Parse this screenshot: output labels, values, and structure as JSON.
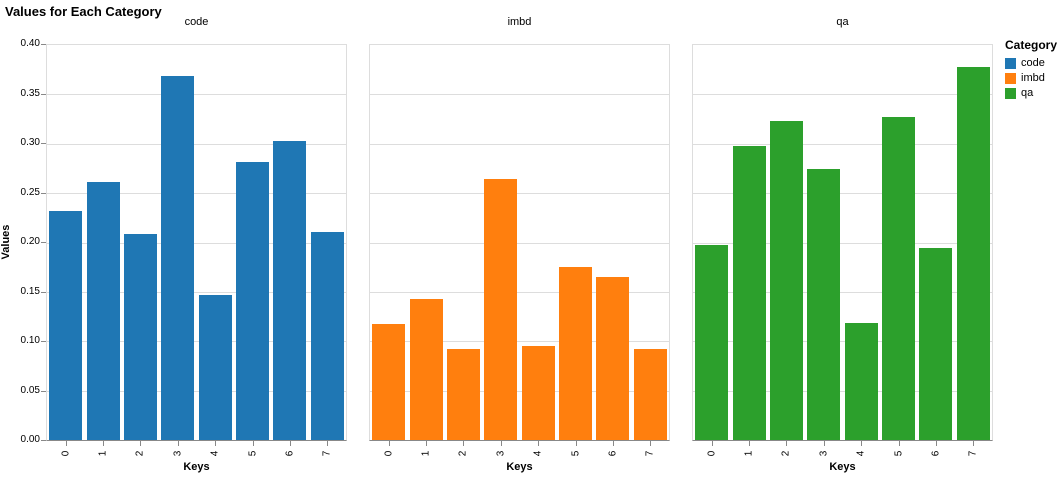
{
  "title": "Values for Each Category",
  "axes": {
    "x_label": "Keys",
    "y_label": "Values",
    "y_ticks": [
      "0.00",
      "0.05",
      "0.10",
      "0.15",
      "0.20",
      "0.25",
      "0.30",
      "0.35",
      "0.40"
    ],
    "x_ticks": [
      "0",
      "1",
      "2",
      "3",
      "4",
      "5",
      "6",
      "7"
    ]
  },
  "legend": {
    "title": "Category",
    "items": [
      {
        "label": "code",
        "color": "#1f77b4"
      },
      {
        "label": "imbd",
        "color": "#ff7f0e"
      },
      {
        "label": "qa",
        "color": "#2ca02c"
      }
    ]
  },
  "chart_data": {
    "type": "bar",
    "title": "Values for Each Category",
    "xlabel": "Keys",
    "ylabel": "Values",
    "ylim": [
      0,
      0.4
    ],
    "grid": true,
    "legend_position": "right",
    "facets": [
      "code",
      "imbd",
      "qa"
    ],
    "categories": [
      "0",
      "1",
      "2",
      "3",
      "4",
      "5",
      "6",
      "7"
    ],
    "series": [
      {
        "name": "code",
        "color": "#1f77b4",
        "values": [
          0.232,
          0.261,
          0.209,
          0.369,
          0.147,
          0.282,
          0.303,
          0.211
        ]
      },
      {
        "name": "imbd",
        "color": "#ff7f0e",
        "values": [
          0.117,
          0.143,
          0.092,
          0.264,
          0.095,
          0.175,
          0.165,
          0.092
        ]
      },
      {
        "name": "qa",
        "color": "#2ca02c",
        "values": [
          0.197,
          0.298,
          0.323,
          0.274,
          0.118,
          0.327,
          0.194,
          0.378
        ]
      }
    ]
  }
}
